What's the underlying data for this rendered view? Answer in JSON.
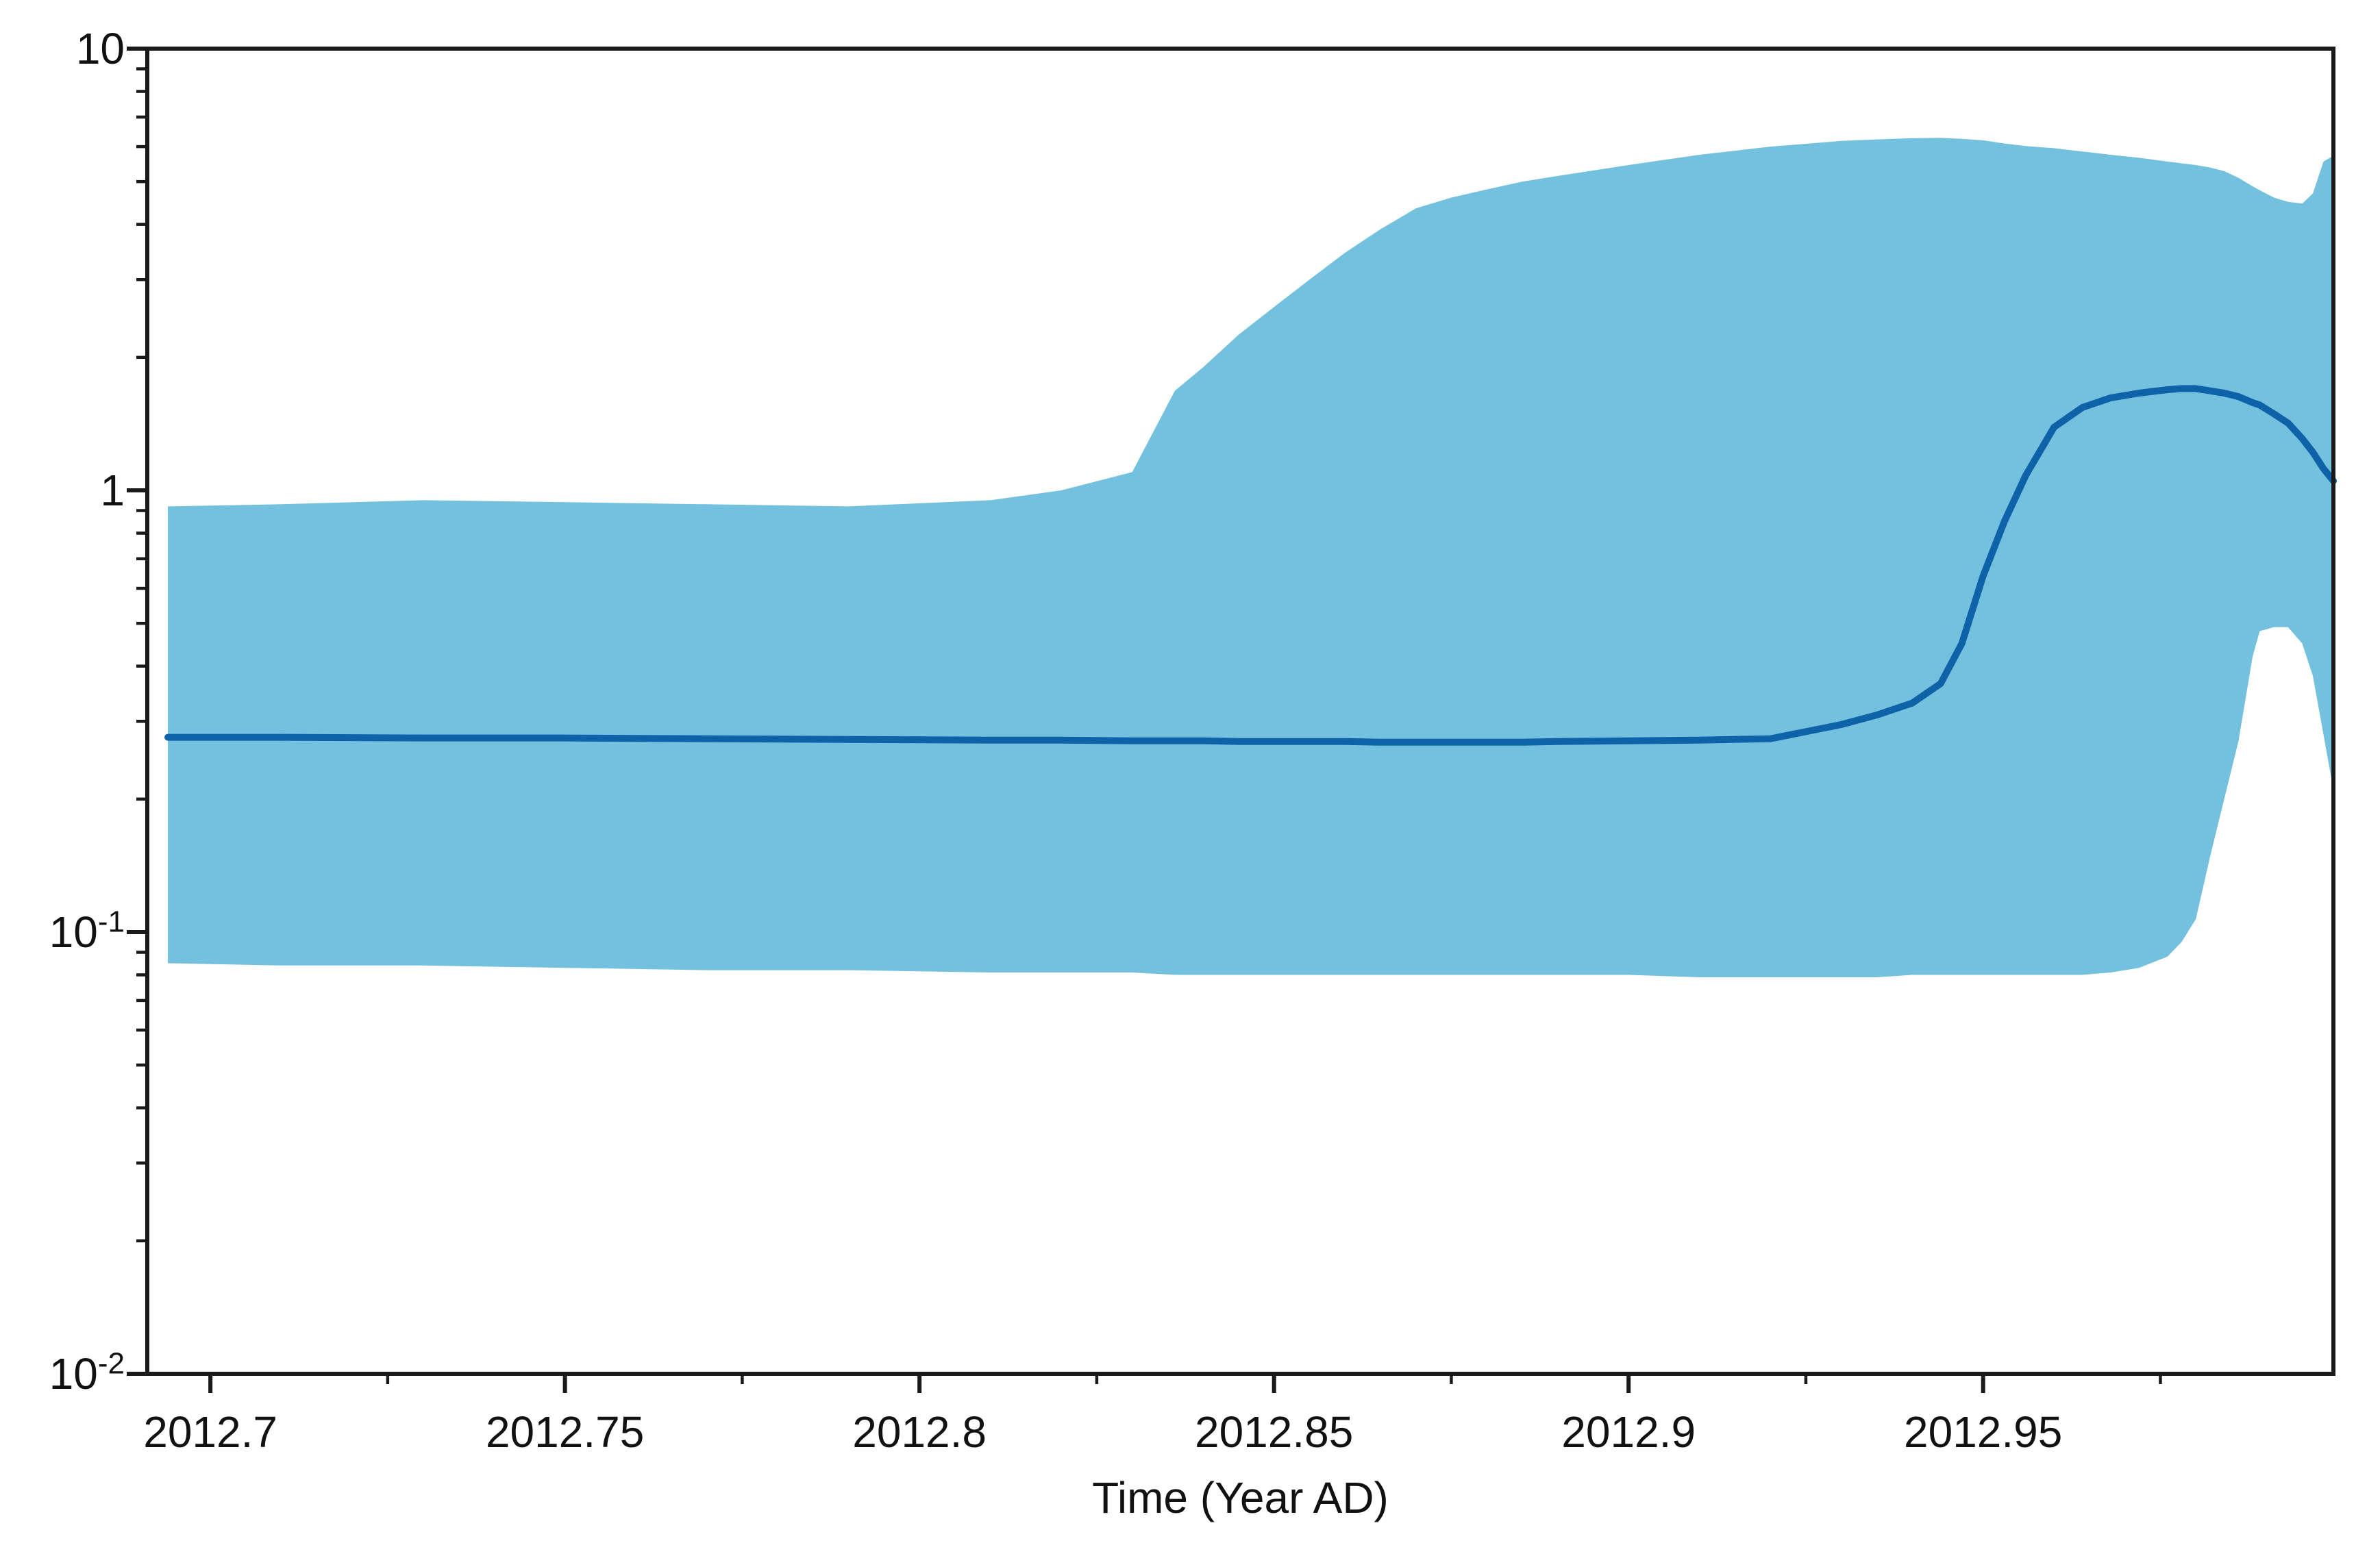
{
  "chart_data": {
    "type": "line",
    "title": "",
    "xlabel": "Time (Year AD)",
    "ylabel": "",
    "x_scale": "linear",
    "y_scale": "log",
    "x_range": [
      2012.6911,
      2012.9994
    ],
    "y_range": [
      0.01,
      10
    ],
    "grid": false,
    "legend": null,
    "colors": {
      "band": "#73C1DF",
      "median_line": "#0D62A8",
      "axis": "#1a1a1a",
      "background": "#ffffff"
    },
    "x": [
      2012.694,
      2012.71,
      2012.73,
      2012.75,
      2012.77,
      2012.79,
      2012.81,
      2012.82,
      2012.83,
      2012.836,
      2012.84,
      2012.845,
      2012.85,
      2012.855,
      2012.86,
      2012.865,
      2012.87,
      2012.875,
      2012.88,
      2012.885,
      2012.89,
      2012.9,
      2012.91,
      2012.92,
      2012.93,
      2012.935,
      2012.94,
      2012.944,
      2012.947,
      2012.95,
      2012.953,
      2012.956,
      2012.96,
      2012.964,
      2012.968,
      2012.972,
      2012.976,
      2012.978,
      2012.98,
      2012.982,
      2012.984,
      2012.986,
      2012.988,
      2012.989,
      2012.991,
      2012.993,
      2012.995,
      2012.9965,
      2012.998,
      2012.9994
    ],
    "series": [
      {
        "name": "median",
        "type": "line",
        "color": "#0D62A8",
        "values": [
          0.276,
          0.276,
          0.275,
          0.275,
          0.274,
          0.273,
          0.272,
          0.272,
          0.271,
          0.271,
          0.271,
          0.27,
          0.27,
          0.27,
          0.27,
          0.269,
          0.269,
          0.269,
          0.269,
          0.269,
          0.27,
          0.271,
          0.272,
          0.274,
          0.295,
          0.31,
          0.33,
          0.365,
          0.45,
          0.64,
          0.85,
          1.08,
          1.39,
          1.54,
          1.62,
          1.66,
          1.69,
          1.7,
          1.7,
          1.68,
          1.66,
          1.63,
          1.58,
          1.56,
          1.49,
          1.42,
          1.31,
          1.22,
          1.12,
          1.05
        ]
      },
      {
        "name": "credible-interval-upper",
        "type": "band-upper",
        "color": "#73C1DF",
        "values": [
          0.92,
          0.93,
          0.95,
          0.94,
          0.93,
          0.92,
          0.95,
          1.0,
          1.1,
          1.68,
          1.9,
          2.25,
          2.6,
          3.0,
          3.45,
          3.9,
          4.35,
          4.6,
          4.8,
          5.0,
          5.15,
          5.45,
          5.75,
          6.0,
          6.18,
          6.23,
          6.27,
          6.28,
          6.25,
          6.2,
          6.1,
          6.02,
          5.95,
          5.85,
          5.75,
          5.66,
          5.55,
          5.5,
          5.45,
          5.38,
          5.28,
          5.1,
          4.88,
          4.78,
          4.6,
          4.5,
          4.46,
          4.7,
          5.55,
          5.72
        ]
      },
      {
        "name": "credible-interval-lower",
        "type": "band-lower",
        "color": "#73C1DF",
        "values": [
          0.085,
          0.084,
          0.084,
          0.083,
          0.082,
          0.082,
          0.081,
          0.081,
          0.081,
          0.08,
          0.08,
          0.08,
          0.08,
          0.08,
          0.08,
          0.08,
          0.08,
          0.08,
          0.08,
          0.08,
          0.08,
          0.08,
          0.079,
          0.079,
          0.079,
          0.079,
          0.08,
          0.08,
          0.08,
          0.08,
          0.08,
          0.08,
          0.08,
          0.08,
          0.081,
          0.083,
          0.088,
          0.095,
          0.107,
          0.148,
          0.2,
          0.27,
          0.42,
          0.48,
          0.49,
          0.49,
          0.45,
          0.38,
          0.28,
          0.21
        ]
      }
    ],
    "x_axis": {
      "major_ticks": [
        2012.7,
        2012.75,
        2012.8,
        2012.85,
        2012.9,
        2012.95
      ],
      "tick_labels": [
        "2012.7",
        "2012.75",
        "2012.8",
        "2012.85",
        "2012.9",
        "2012.95"
      ],
      "minor_ticks": [
        2012.725,
        2012.775,
        2012.825,
        2012.875,
        2012.925,
        2012.975
      ]
    },
    "y_axis": {
      "major_ticks": [
        {
          "value": 10,
          "base": "10",
          "exp": ""
        },
        {
          "value": 1,
          "base": "1",
          "exp": ""
        },
        {
          "value": 0.1,
          "base": "10",
          "exp": "-1"
        },
        {
          "value": 0.01,
          "base": "10",
          "exp": "-2"
        }
      ],
      "minor_ticks_per_decade": [
        2,
        3,
        4,
        5,
        6,
        7,
        8,
        9
      ]
    }
  }
}
